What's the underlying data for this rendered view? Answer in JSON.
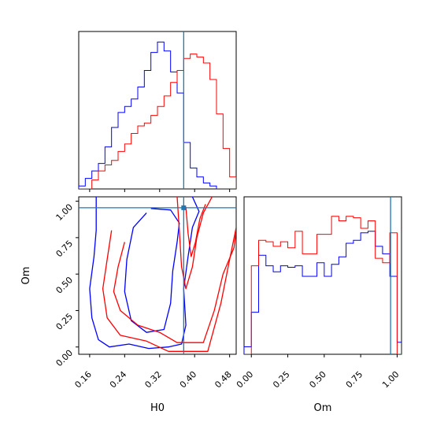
{
  "chart_data": {
    "type": "corner",
    "parameters": [
      "H0",
      "Om"
    ],
    "colors": {
      "red": "#ff0000",
      "blue": "#0000ff",
      "truth": "#1f77b4"
    },
    "truth": {
      "H0": 0.375,
      "Om": 0.955
    },
    "panels": [
      {
        "id": "h0-marginal",
        "type": "step-histogram",
        "parameter": "H0",
        "xlim": [
          0.135,
          0.495
        ],
        "ylim": [
          0,
          1.05
        ],
        "bins": [
          0.135,
          0.15,
          0.165,
          0.18,
          0.195,
          0.21,
          0.225,
          0.24,
          0.255,
          0.27,
          0.285,
          0.3,
          0.315,
          0.33,
          0.345,
          0.36,
          0.375,
          0.39,
          0.405,
          0.42,
          0.435,
          0.45,
          0.465,
          0.48,
          0.495
        ],
        "series": [
          {
            "name": "",
            "color": "#0000ff",
            "values": [
              0.02,
              0.07,
              0.12,
              0.17,
              0.28,
              0.41,
              0.51,
              0.55,
              0.6,
              0.68,
              0.79,
              0.91,
              0.98,
              0.92,
              0.78,
              0.64,
              0.31,
              0.14,
              0.08,
              0.04,
              0.02,
              0,
              0,
              0
            ]
          },
          {
            "name": "",
            "color": "#ff0000",
            "values": [
              0,
              0,
              0.06,
              0.12,
              0.16,
              0.19,
              0.25,
              0.3,
              0.37,
              0.42,
              0.44,
              0.49,
              0.55,
              0.62,
              0.71,
              0.79,
              0.87,
              0.9,
              0.88,
              0.84,
              0.73,
              0.5,
              0.27,
              0.08
            ]
          }
        ]
      },
      {
        "id": "om-marginal",
        "type": "step-histogram",
        "parameter": "Om",
        "xlim": [
          -0.05,
          1.03
        ],
        "ylim": [
          0,
          1.05
        ],
        "bins": [
          -0.05,
          0.0,
          0.05,
          0.1,
          0.15,
          0.2,
          0.25,
          0.3,
          0.35,
          0.4,
          0.45,
          0.5,
          0.55,
          0.6,
          0.65,
          0.7,
          0.75,
          0.8,
          0.85,
          0.9,
          0.95,
          1.0,
          1.03
        ],
        "series": [
          {
            "name": "",
            "color": "#0000ff",
            "values": [
              0.05,
              0.28,
              0.66,
              0.59,
              0.55,
              0.59,
              0.58,
              0.59,
              0.52,
              0.52,
              0.61,
              0.52,
              0.6,
              0.65,
              0.74,
              0.76,
              0.81,
              0.82,
              0.72,
              0.67,
              0.52,
              0.08
            ]
          },
          {
            "name": "",
            "color": "#ff0000",
            "values": [
              0,
              0.59,
              0.76,
              0.75,
              0.72,
              0.75,
              0.71,
              0.82,
              0.67,
              0.67,
              0.8,
              0.8,
              0.92,
              0.89,
              0.92,
              0.91,
              0.84,
              0.89,
              0.64,
              0.61,
              0.81,
              0.0
            ]
          }
        ]
      },
      {
        "id": "joint-h0-om",
        "type": "contour",
        "xparam": "H0",
        "yparam": "Om",
        "xlim": [
          0.135,
          0.495
        ],
        "ylim": [
          -0.05,
          1.03
        ],
        "xlabel": "H0",
        "ylabel": "Om",
        "contours": [
          {
            "color": "#0000ff",
            "level": "outer",
            "points": [
              [
                0.175,
                1.03
              ],
              [
                0.175,
                0.8
              ],
              [
                0.17,
                0.62
              ],
              [
                0.16,
                0.4
              ],
              [
                0.165,
                0.2
              ],
              [
                0.18,
                0.05
              ],
              [
                0.205,
                0.0
              ],
              [
                0.25,
                0.02
              ],
              [
                0.295,
                -0.01
              ],
              [
                0.34,
                0.0
              ],
              [
                0.37,
                0.02
              ],
              [
                0.38,
                0.15
              ],
              [
                0.375,
                0.4
              ],
              [
                0.385,
                0.62
              ],
              [
                0.395,
                0.82
              ],
              [
                0.41,
                0.93
              ],
              [
                0.395,
                1.03
              ]
            ]
          },
          {
            "color": "#0000ff",
            "level": "inner",
            "points": [
              [
                0.29,
                0.92
              ],
              [
                0.26,
                0.82
              ],
              [
                0.245,
                0.6
              ],
              [
                0.24,
                0.38
              ],
              [
                0.255,
                0.18
              ],
              [
                0.29,
                0.1
              ],
              [
                0.33,
                0.12
              ],
              [
                0.345,
                0.3
              ],
              [
                0.35,
                0.52
              ],
              [
                0.36,
                0.72
              ],
              [
                0.365,
                0.85
              ],
              [
                0.345,
                0.94
              ],
              [
                0.3,
                0.95
              ]
            ]
          },
          {
            "color": "#ff0000",
            "level": "outer",
            "points": [
              [
                0.21,
                0.8
              ],
              [
                0.2,
                0.6
              ],
              [
                0.19,
                0.4
              ],
              [
                0.2,
                0.2
              ],
              [
                0.23,
                0.08
              ],
              [
                0.29,
                0.04
              ],
              [
                0.34,
                -0.03
              ],
              [
                0.43,
                -0.03
              ],
              [
                0.46,
                0.3
              ],
              [
                0.48,
                0.6
              ],
              [
                0.495,
                0.82
              ]
            ]
          },
          {
            "color": "#ff0000",
            "level": "inner",
            "points": [
              [
                0.24,
                0.72
              ],
              [
                0.225,
                0.55
              ],
              [
                0.215,
                0.38
              ],
              [
                0.23,
                0.25
              ],
              [
                0.27,
                0.15
              ],
              [
                0.32,
                0.1
              ],
              [
                0.36,
                0.03
              ],
              [
                0.42,
                0.03
              ],
              [
                0.445,
                0.25
              ],
              [
                0.465,
                0.5
              ],
              [
                0.49,
                0.68
              ],
              [
                0.495,
                0.8
              ]
            ]
          },
          {
            "color": "#ff0000",
            "level": "outer",
            "points": [
              [
                0.36,
                1.03
              ],
              [
                0.365,
                0.8
              ],
              [
                0.37,
                0.55
              ],
              [
                0.38,
                0.4
              ],
              [
                0.395,
                0.55
              ],
              [
                0.405,
                0.75
              ],
              [
                0.42,
                0.92
              ],
              [
                0.44,
                1.03
              ]
            ]
          },
          {
            "color": "#ff0000",
            "level": "inner",
            "points": [
              [
                0.38,
                0.96
              ],
              [
                0.385,
                0.78
              ],
              [
                0.392,
                0.62
              ],
              [
                0.402,
                0.72
              ],
              [
                0.412,
                0.88
              ],
              [
                0.425,
                0.98
              ]
            ]
          }
        ]
      }
    ],
    "axes": {
      "H0": {
        "ticks": [
          0.16,
          0.24,
          0.32,
          0.4,
          0.48
        ],
        "tick_labels": [
          "0.16",
          "0.24",
          "0.32",
          "0.40",
          "0.48"
        ],
        "label": "H0"
      },
      "Om": {
        "ticks": [
          0.0,
          0.25,
          0.5,
          0.75,
          1.0
        ],
        "tick_labels": [
          "0.00",
          "0.25",
          "0.50",
          "0.75",
          "1.00"
        ],
        "label": "Om"
      }
    }
  }
}
